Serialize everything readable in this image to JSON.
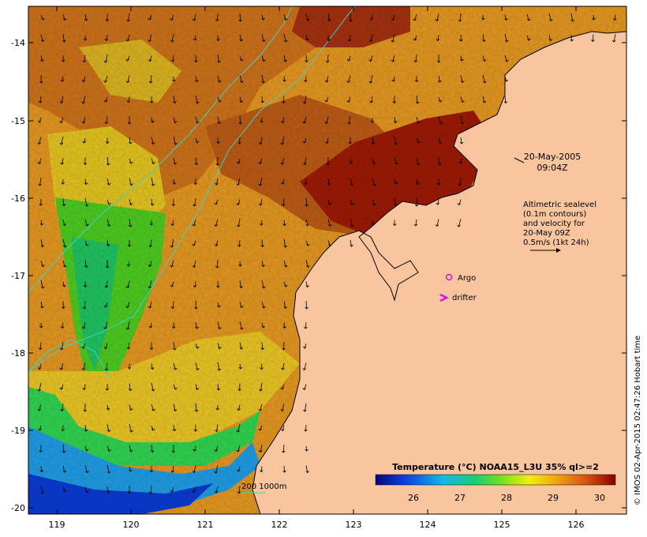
{
  "map": {
    "lon_ticks": [
      "119",
      "120",
      "121",
      "122",
      "123",
      "124",
      "125",
      "126"
    ],
    "lat_ticks": [
      "-14",
      "-15",
      "-16",
      "-17",
      "-18",
      "-19",
      "-20"
    ],
    "timestamp_date": "20-May-2005",
    "timestamp_time": "09:04Z",
    "altimetry_lines": [
      "Altimetric sealevel",
      "(0.1m contours)",
      "and velocity for",
      "20-May 09Z",
      "0.5m/s (1kt 24h)"
    ],
    "legend_argo": "Argo",
    "legend_drifter": "drifter",
    "isobath_label": "200 1000m",
    "colorbar_title": "Temperature (°C) NOAA15_L3U 35% ql>=2",
    "colorbar_ticks": [
      "26",
      "27",
      "28",
      "29",
      "30"
    ],
    "credit": "© IMOS 02-Apr-2015 02:47:26 Hobart time",
    "colors": {
      "land": "#f9c59e",
      "isobath": "#40d0c8",
      "argo": "#e010e0",
      "drifter": "#e010e0"
    }
  }
}
